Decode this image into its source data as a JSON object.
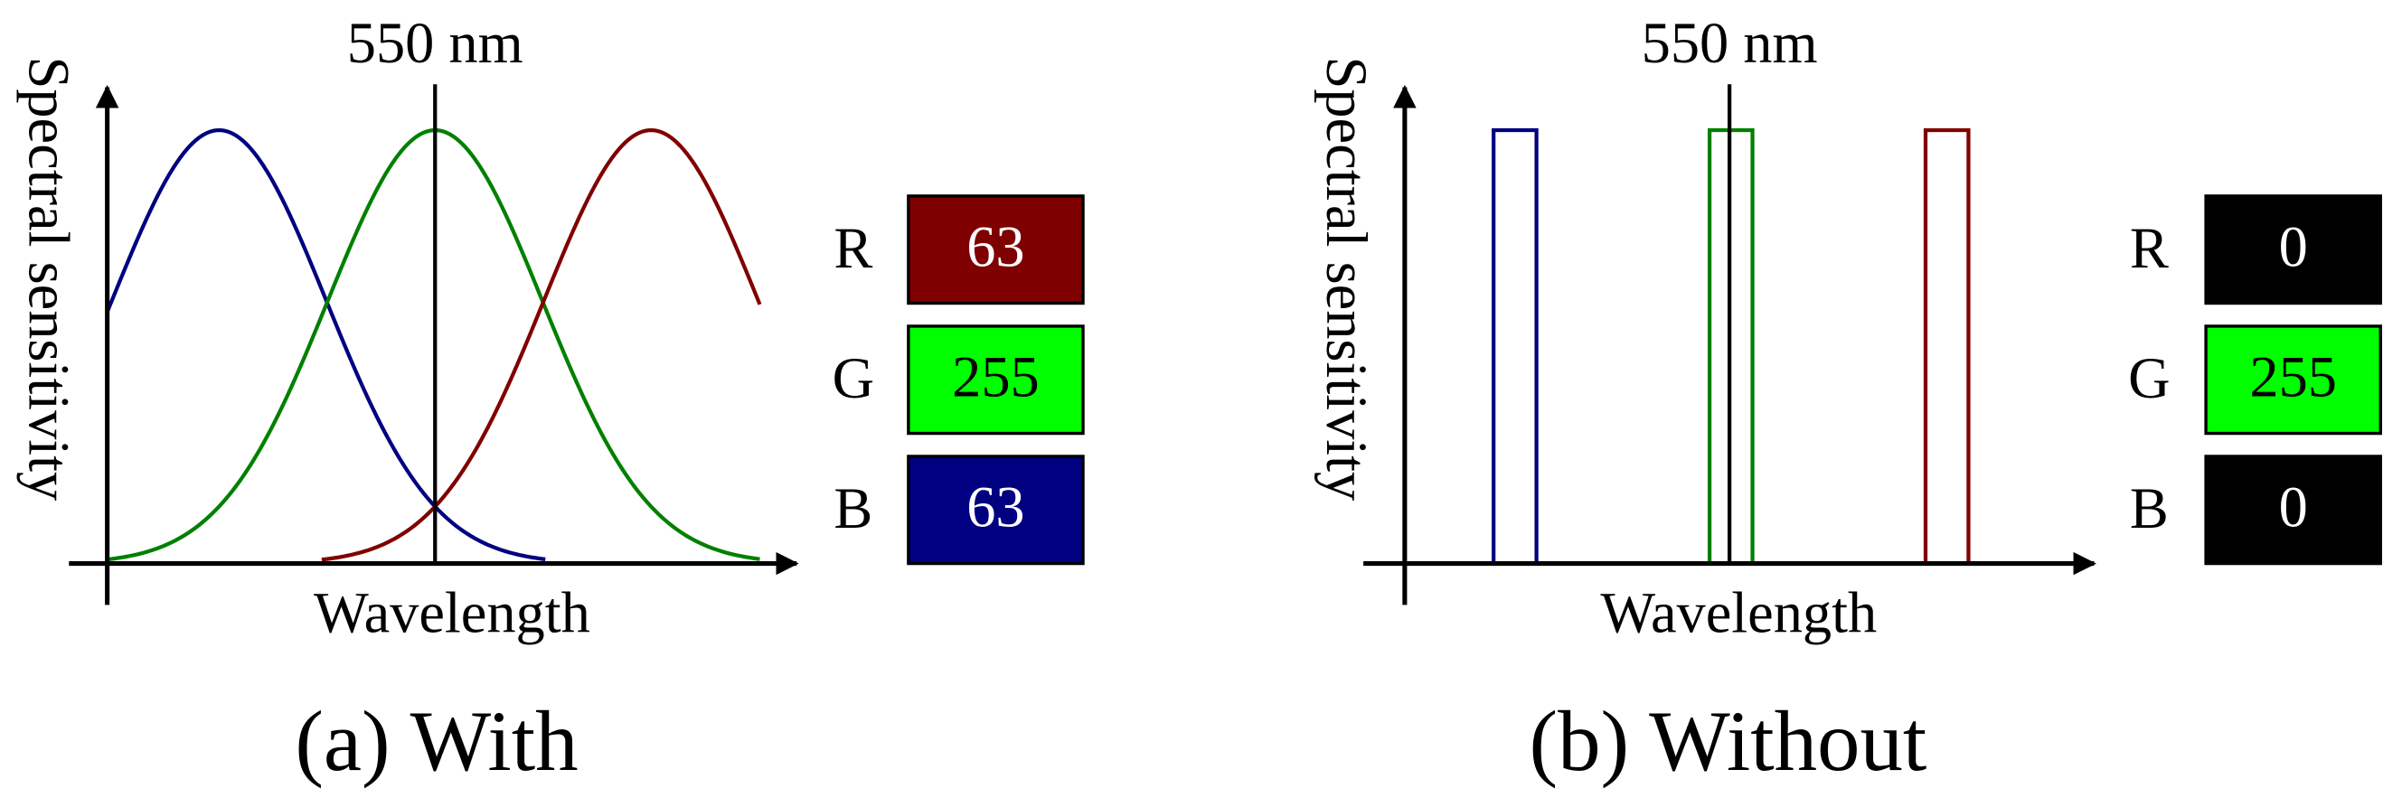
{
  "panels": [
    {
      "marker_label": "550 nm",
      "y_axis_label": "Spectral sensitivity",
      "x_axis_label": "Wavelength",
      "caption": "(a) With",
      "channels": [
        {
          "label": "R",
          "value": 63
        },
        {
          "label": "G",
          "value": 255
        },
        {
          "label": "B",
          "value": 63
        }
      ]
    },
    {
      "marker_label": "550 nm",
      "y_axis_label": "Spectral sensitivity",
      "x_axis_label": "Wavelength",
      "caption": "(b) Without",
      "channels": [
        {
          "label": "R",
          "value": 0
        },
        {
          "label": "G",
          "value": 255
        },
        {
          "label": "B",
          "value": 0
        }
      ]
    }
  ]
}
